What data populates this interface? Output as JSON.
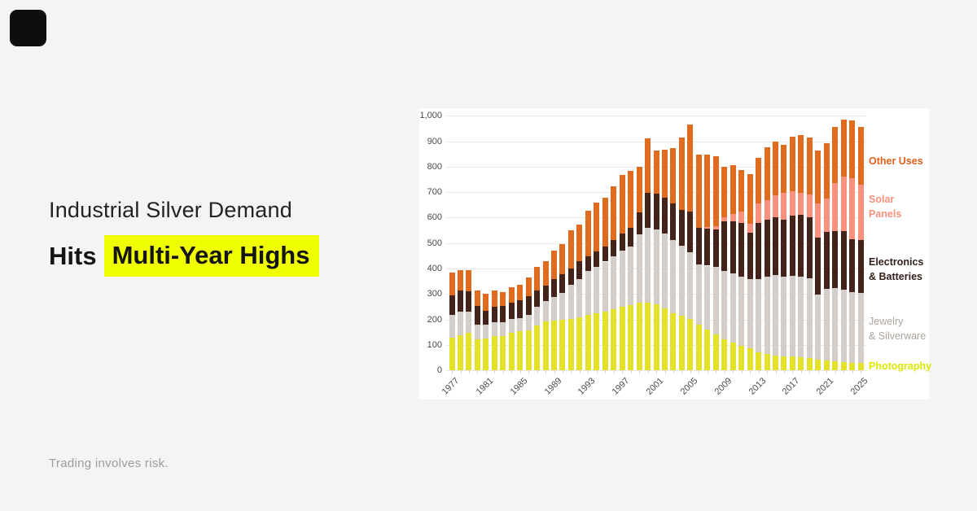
{
  "page": {
    "background": "#f5f4f2",
    "card_background": "#ffffff"
  },
  "brand": {
    "logo_color": "#0e0e0e"
  },
  "headline": {
    "line1": "Industrial Silver Demand",
    "line2_prefix": "Hits",
    "line2_highlight": "Multi-Year Highs",
    "highlight_color": "#f0ff00"
  },
  "footer": {
    "disclaimer": "Trading involves risk."
  },
  "chart_data": {
    "type": "bar",
    "stacked": true,
    "title": "",
    "xlabel": "",
    "ylabel": "",
    "ylim": [
      0,
      1000
    ],
    "grid": true,
    "legend_position": "right",
    "years": [
      1977,
      1978,
      1979,
      1980,
      1981,
      1982,
      1983,
      1984,
      1985,
      1986,
      1987,
      1988,
      1989,
      1990,
      1991,
      1992,
      1993,
      1994,
      1995,
      1996,
      1997,
      1998,
      1999,
      2000,
      2001,
      2002,
      2003,
      2004,
      2005,
      2006,
      2007,
      2008,
      2009,
      2010,
      2011,
      2012,
      2013,
      2014,
      2015,
      2016,
      2017,
      2018,
      2019,
      2020,
      2021,
      2022,
      2023,
      2024,
      2025
    ],
    "x_tick_labels": [
      "1977",
      "1981",
      "1985",
      "1989",
      "1993",
      "1997",
      "2001",
      "2005",
      "2009",
      "2013",
      "2017",
      "2021",
      "2025"
    ],
    "y_ticks": [
      0,
      100,
      200,
      300,
      400,
      500,
      600,
      700,
      800,
      900,
      1000
    ],
    "y_tick_labels": [
      "0",
      "100",
      "200",
      "300",
      "400",
      "500",
      "600",
      "700",
      "800",
      "900",
      "1,000"
    ],
    "series": [
      {
        "name": "Photography",
        "color": "#e4e12b",
        "values": [
          128,
          138,
          146,
          122,
          125,
          133,
          135,
          146,
          152,
          158,
          176,
          192,
          194,
          199,
          203,
          209,
          216,
          223,
          231,
          240,
          250,
          255,
          265,
          267,
          258,
          242,
          224,
          214,
          200,
          180,
          160,
          140,
          122,
          108,
          97,
          85,
          70,
          64,
          58,
          55,
          53,
          51,
          48,
          43,
          39,
          36,
          33,
          30,
          28
        ]
      },
      {
        "name": "Jewelry & Silverware",
        "color": "#d3cec9",
        "values": [
          90,
          92,
          84,
          58,
          53,
          55,
          55,
          56,
          53,
          60,
          74,
          80,
          94,
          105,
          133,
          148,
          174,
          183,
          196,
          208,
          219,
          232,
          270,
          293,
          295,
          295,
          288,
          275,
          263,
          236,
          251,
          265,
          267,
          272,
          271,
          272,
          289,
          304,
          315,
          313,
          317,
          317,
          314,
          255,
          280,
          288,
          283,
          278,
          275
        ]
      },
      {
        "name": "Electronics & Batteries",
        "color": "#44231a",
        "values": [
          77,
          82,
          80,
          72,
          57,
          62,
          64,
          62,
          71,
          72,
          64,
          62,
          69,
          72,
          64,
          73,
          58,
          61,
          60,
          64,
          67,
          73,
          85,
          138,
          140,
          140,
          143,
          140,
          162,
          144,
          145,
          149,
          195,
          205,
          210,
          185,
          221,
          223,
          228,
          223,
          237,
          244,
          239,
          224,
          224,
          224,
          232,
          208,
          208
        ]
      },
      {
        "name": "Solar Panels",
        "color": "#f9917c",
        "values": [
          0,
          0,
          0,
          0,
          0,
          0,
          0,
          0,
          0,
          0,
          0,
          0,
          0,
          0,
          0,
          0,
          0,
          0,
          0,
          0,
          0,
          0,
          0,
          0,
          0,
          0,
          0,
          0,
          0,
          0,
          8,
          11,
          17,
          28,
          45,
          35,
          75,
          79,
          86,
          106,
          96,
          85,
          91,
          133,
          133,
          186,
          213,
          239,
          217
        ]
      },
      {
        "name": "Other Uses",
        "color": "#df6c1e",
        "values": [
          90,
          83,
          84,
          63,
          65,
          62,
          54,
          61,
          60,
          76,
          91,
          96,
          113,
          119,
          150,
          142,
          180,
          193,
          191,
          210,
          231,
          223,
          180,
          212,
          170,
          191,
          217,
          286,
          341,
          286,
          282,
          277,
          197,
          192,
          164,
          195,
          181,
          207,
          211,
          190,
          216,
          228,
          223,
          207,
          217,
          223,
          224,
          228,
          229
        ]
      }
    ],
    "legend": [
      {
        "label_lines": [
          "Other Uses"
        ],
        "color": "#e0601c"
      },
      {
        "label_lines": [
          "Solar",
          "Panels"
        ],
        "color": "#f9917c"
      },
      {
        "label_lines": [
          "Electronics",
          "& Batteries"
        ],
        "color": "#34201a"
      },
      {
        "label_lines": [
          "Jewelry",
          "& Silverware"
        ],
        "color": "#aba49e"
      },
      {
        "label_lines": [
          "Photography"
        ],
        "color": "#dfe700"
      }
    ]
  }
}
